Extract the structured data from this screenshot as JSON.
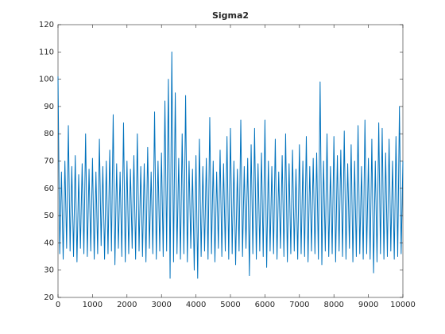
{
  "chart_data": {
    "type": "line",
    "title": "Sigma2",
    "x": [
      0,
      50,
      100,
      150,
      200,
      250,
      300,
      350,
      400,
      450,
      500,
      550,
      600,
      650,
      700,
      750,
      800,
      850,
      900,
      950,
      1000,
      1050,
      1100,
      1150,
      1200,
      1250,
      1300,
      1350,
      1400,
      1450,
      1500,
      1550,
      1600,
      1650,
      1700,
      1750,
      1800,
      1850,
      1900,
      1950,
      2000,
      2050,
      2100,
      2150,
      2200,
      2250,
      2300,
      2350,
      2400,
      2450,
      2500,
      2550,
      2600,
      2650,
      2700,
      2750,
      2800,
      2850,
      2900,
      2950,
      3000,
      3050,
      3100,
      3150,
      3200,
      3250,
      3300,
      3350,
      3400,
      3450,
      3500,
      3550,
      3600,
      3650,
      3700,
      3750,
      3800,
      3850,
      3900,
      3950,
      4000,
      4050,
      4100,
      4150,
      4200,
      4250,
      4300,
      4350,
      4400,
      4450,
      4500,
      4550,
      4600,
      4650,
      4700,
      4750,
      4800,
      4850,
      4900,
      4950,
      5000,
      5050,
      5100,
      5150,
      5200,
      5250,
      5300,
      5350,
      5400,
      5450,
      5500,
      5550,
      5600,
      5650,
      5700,
      5750,
      5800,
      5850,
      5900,
      5950,
      6000,
      6050,
      6100,
      6150,
      6200,
      6250,
      6300,
      6350,
      6400,
      6450,
      6500,
      6550,
      6600,
      6650,
      6700,
      6750,
      6800,
      6850,
      6900,
      6950,
      7000,
      7050,
      7100,
      7150,
      7200,
      7250,
      7300,
      7350,
      7400,
      7450,
      7500,
      7550,
      7600,
      7650,
      7700,
      7750,
      7800,
      7850,
      7900,
      7950,
      8000,
      8050,
      8100,
      8150,
      8200,
      8250,
      8300,
      8350,
      8400,
      8450,
      8500,
      8550,
      8600,
      8650,
      8700,
      8750,
      8800,
      8850,
      8900,
      8950,
      9000,
      9050,
      9100,
      9150,
      9200,
      9250,
      9300,
      9350,
      9400,
      9450,
      9500,
      9550,
      9600,
      9650,
      9700,
      9750,
      9800,
      9850,
      9900,
      9950,
      10000
    ],
    "series": [
      {
        "color": "#0072bd",
        "values": [
          101,
          36,
          66,
          34,
          70,
          38,
          83,
          37,
          68,
          35,
          72,
          33,
          65,
          38,
          69,
          36,
          80,
          35,
          67,
          37,
          71,
          34,
          66,
          36,
          78,
          39,
          68,
          34,
          70,
          36,
          74,
          37,
          87,
          32,
          69,
          38,
          66,
          35,
          84,
          33,
          70,
          36,
          67,
          38,
          72,
          34,
          80,
          37,
          68,
          35,
          69,
          33,
          75,
          38,
          66,
          36,
          88,
          34,
          70,
          37,
          73,
          35,
          92,
          37,
          100,
          27,
          110,
          33,
          95,
          36,
          71,
          34,
          80,
          36,
          94,
          33,
          70,
          38,
          67,
          30,
          72,
          27,
          78,
          35,
          68,
          37,
          71,
          34,
          86,
          36,
          70,
          33,
          66,
          38,
          74,
          35,
          69,
          37,
          79,
          34,
          82,
          36,
          70,
          32,
          67,
          37,
          85,
          35,
          68,
          38,
          71,
          28,
          76,
          36,
          82,
          34,
          69,
          37,
          73,
          35,
          85,
          31,
          70,
          37,
          68,
          36,
          78,
          34,
          66,
          38,
          72,
          35,
          80,
          33,
          69,
          36,
          74,
          37,
          67,
          34,
          76,
          36,
          70,
          35,
          79,
          33,
          68,
          37,
          71,
          36,
          73,
          34,
          99,
          32,
          70,
          37,
          80,
          35,
          68,
          36,
          79,
          33,
          72,
          37,
          74,
          35,
          81,
          34,
          69,
          38,
          76,
          33,
          70,
          35,
          83,
          36,
          68,
          34,
          85,
          36,
          71,
          34,
          78,
          29,
          70,
          33,
          84,
          36,
          82,
          34,
          73,
          35,
          78,
          37,
          70,
          34,
          79,
          35,
          90,
          36,
          70
        ]
      }
    ],
    "xlim": [
      0,
      10000
    ],
    "xticks": [
      0,
      1000,
      2000,
      3000,
      4000,
      5000,
      6000,
      7000,
      8000,
      9000,
      10000
    ],
    "ylim": [
      20,
      120
    ],
    "yticks": [
      20,
      30,
      40,
      50,
      60,
      70,
      80,
      90,
      100,
      110,
      120
    ]
  }
}
